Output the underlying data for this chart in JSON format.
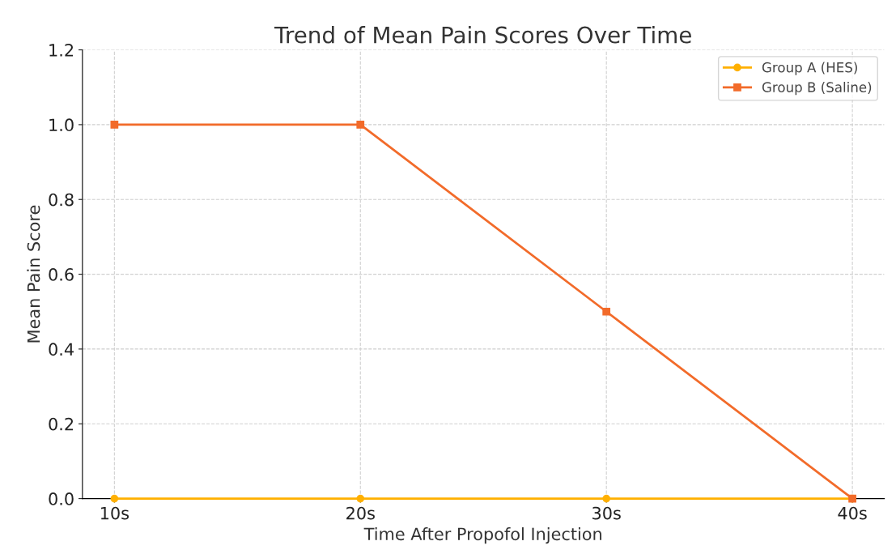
{
  "chart_data": {
    "type": "line",
    "title": "Trend of Mean Pain Scores Over Time",
    "xlabel": "Time After Propofol Injection",
    "ylabel": "Mean Pain Score",
    "categories": [
      "10s",
      "20s",
      "30s",
      "40s"
    ],
    "series": [
      {
        "name": "Group A (HES)",
        "color": "#ffb000",
        "values": [
          0,
          0,
          0,
          0
        ],
        "marker": "circle"
      },
      {
        "name": "Group B (Saline)",
        "color": "#f26b2a",
        "values": [
          1.0,
          1.0,
          0.5,
          0
        ],
        "marker": "square"
      }
    ],
    "ylim": [
      0,
      1.2
    ],
    "yticks": [
      {
        "value": 0,
        "label": "0.0"
      },
      0.2,
      0.4,
      0.6,
      0.8,
      {
        "value": 1,
        "label": "1.0"
      },
      1.2
    ],
    "grid": true,
    "legend": "top right",
    "line_style": "solid"
  }
}
